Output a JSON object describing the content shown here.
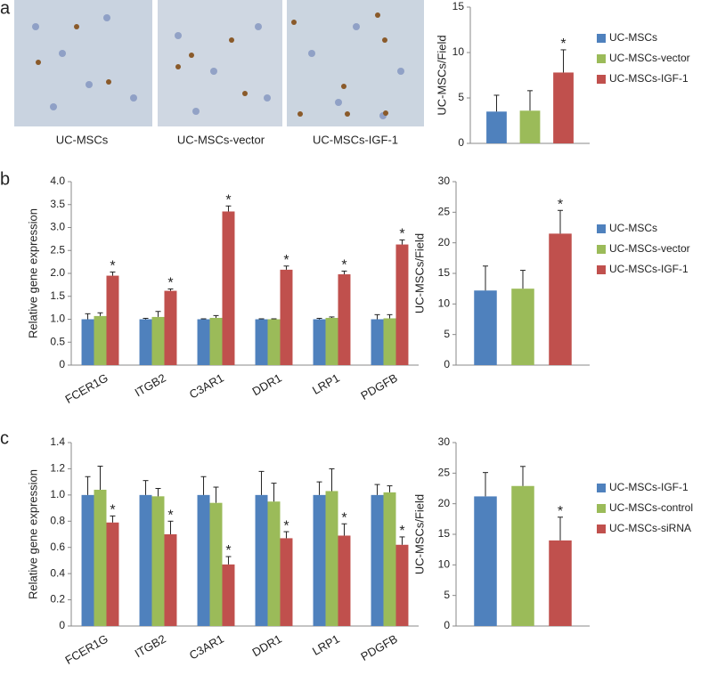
{
  "panel_labels": [
    "a",
    "b",
    "c"
  ],
  "image_captions": [
    "UC-MSCs",
    "UC-MSCs-vector",
    "UC-MSCs-IGF-1"
  ],
  "chart_data": [
    {
      "type": "bar",
      "y_label": "UC-MSCs/Field",
      "categories": [
        null
      ],
      "ylim": [
        0,
        15
      ],
      "yticks": [
        0,
        5,
        10,
        15
      ],
      "legend": "right",
      "series": [
        {
          "name": "UC-MSCs",
          "color": "#4f81bd",
          "values": [
            3.5
          ],
          "errors": [
            1.8
          ]
        },
        {
          "name": "UC-MSCs-vector",
          "color": "#9bbb59",
          "values": [
            3.6
          ],
          "errors": [
            2.2
          ]
        },
        {
          "name": "UC-MSCs-IGF-1",
          "color": "#c0504d",
          "values": [
            7.8
          ],
          "errors": [
            2.5
          ],
          "stars": [
            "*"
          ]
        }
      ]
    },
    {
      "type": "bar",
      "y_label": "Relative gene expression",
      "categories": [
        "FCER1G",
        "ITGB2",
        "C3AR1",
        "DDR1",
        "LRP1",
        "PDGFB"
      ],
      "ylim": [
        0,
        4
      ],
      "yticks": [
        0,
        0.5,
        {
          "value": 1,
          "label": "1.0"
        },
        1.5,
        {
          "value": 2,
          "label": "2.0"
        },
        2.5,
        {
          "value": 3,
          "label": "3.0"
        },
        3.5,
        {
          "value": 4,
          "label": "4.0"
        }
      ],
      "series": [
        {
          "color": "#4f81bd",
          "values": [
            1.0,
            1.0,
            1.0,
            1.0,
            1.0,
            1.0
          ],
          "errors": [
            0.12,
            0.02,
            0.01,
            0.01,
            0.02,
            0.1
          ]
        },
        {
          "color": "#9bbb59",
          "values": [
            1.07,
            1.05,
            1.03,
            1.0,
            1.03,
            1.02
          ],
          "errors": [
            0.07,
            0.12,
            0.05,
            0.01,
            0.02,
            0.08
          ]
        },
        {
          "color": "#c0504d",
          "values": [
            1.95,
            1.62,
            3.35,
            2.08,
            1.98,
            2.63
          ],
          "errors": [
            0.08,
            0.04,
            0.12,
            0.08,
            0.07,
            0.1
          ],
          "stars": [
            "*",
            "*",
            "*",
            "*",
            "*",
            "*"
          ]
        }
      ]
    },
    {
      "type": "bar",
      "y_label": "UC-MSCs/Field",
      "categories": [
        null
      ],
      "ylim": [
        0,
        30
      ],
      "yticks": [
        0,
        5,
        10,
        15,
        20,
        25,
        30
      ],
      "legend": "right",
      "series": [
        {
          "name": "UC-MSCs",
          "color": "#4f81bd",
          "values": [
            12.2
          ],
          "errors": [
            4.0
          ]
        },
        {
          "name": "UC-MSCs-vector",
          "color": "#9bbb59",
          "values": [
            12.5
          ],
          "errors": [
            3.0
          ]
        },
        {
          "name": "UC-MSCs-IGF-1",
          "color": "#c0504d",
          "values": [
            21.5
          ],
          "errors": [
            3.8
          ],
          "stars": [
            "*"
          ]
        }
      ]
    },
    {
      "type": "bar",
      "y_label": "Relative gene expression",
      "categories": [
        "FCER1G",
        "ITGB2",
        "C3AR1",
        "DDR1",
        "LRP1",
        "PDGFB"
      ],
      "ylim": [
        0,
        1.4
      ],
      "yticks": [
        0,
        0.2,
        0.4,
        0.6,
        0.8,
        {
          "value": 1,
          "label": "1.0"
        },
        1.2,
        1.4
      ],
      "series": [
        {
          "color": "#4f81bd",
          "values": [
            1.0,
            1.0,
            1.0,
            1.0,
            1.0,
            1.0
          ],
          "errors": [
            0.14,
            0.11,
            0.14,
            0.18,
            0.1,
            0.08
          ]
        },
        {
          "color": "#9bbb59",
          "values": [
            1.04,
            0.99,
            0.94,
            0.95,
            1.03,
            1.02
          ],
          "errors": [
            0.18,
            0.06,
            0.12,
            0.14,
            0.17,
            0.05
          ]
        },
        {
          "color": "#c0504d",
          "values": [
            0.79,
            0.7,
            0.47,
            0.67,
            0.69,
            0.62
          ],
          "errors": [
            0.05,
            0.1,
            0.06,
            0.05,
            0.09,
            0.06
          ],
          "stars": [
            "*",
            "*",
            "*",
            "*",
            "*",
            "*"
          ]
        }
      ]
    },
    {
      "type": "bar",
      "y_label": "UC-MSCs/Field",
      "categories": [
        null
      ],
      "ylim": [
        0,
        30
      ],
      "yticks": [
        0,
        5,
        10,
        15,
        20,
        25,
        30
      ],
      "legend": "right",
      "series": [
        {
          "name": "UC-MSCs-IGF-1",
          "color": "#4f81bd",
          "values": [
            21.2
          ],
          "errors": [
            3.9
          ]
        },
        {
          "name": "UC-MSCs-control",
          "color": "#9bbb59",
          "values": [
            22.9
          ],
          "errors": [
            3.2
          ]
        },
        {
          "name": "UC-MSCs-siRNA",
          "color": "#c0504d",
          "values": [
            14.0
          ],
          "errors": [
            3.8
          ],
          "stars": [
            "*"
          ]
        }
      ]
    }
  ]
}
